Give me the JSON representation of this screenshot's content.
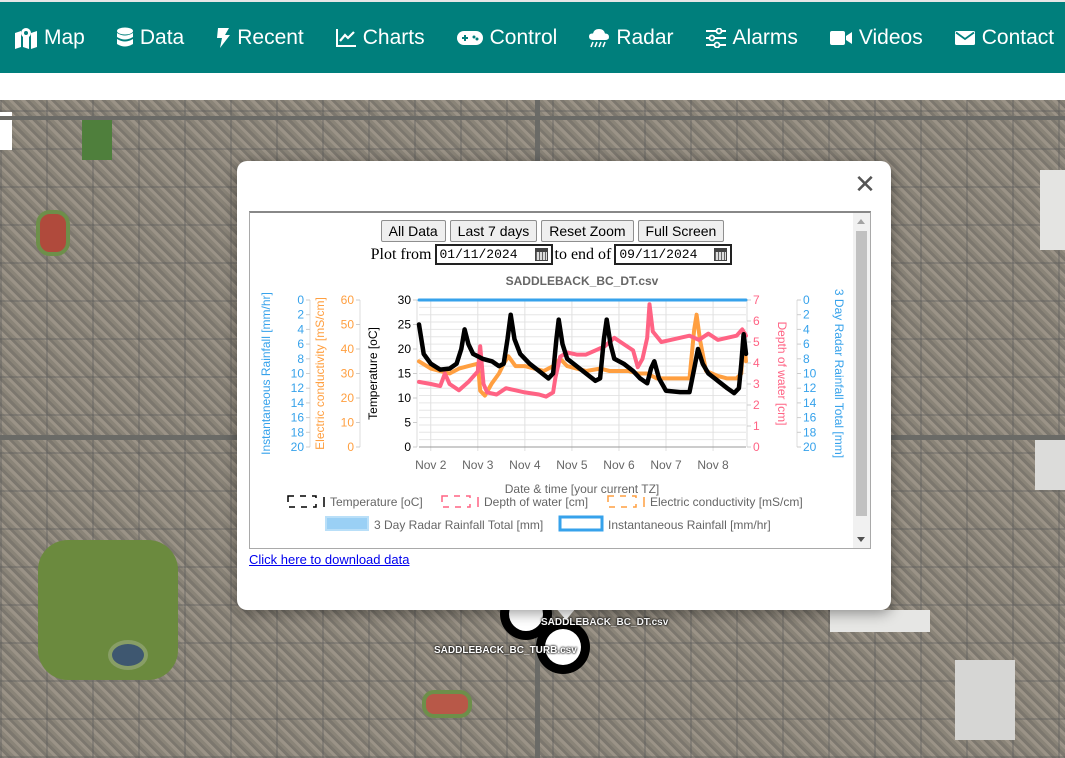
{
  "nav": {
    "items": [
      {
        "label": "Map",
        "icon": "map-icon"
      },
      {
        "label": "Data",
        "icon": "database-icon"
      },
      {
        "label": "Recent",
        "icon": "bolt-icon"
      },
      {
        "label": "Charts",
        "icon": "line-chart-icon"
      },
      {
        "label": "Control",
        "icon": "gamepad-icon"
      },
      {
        "label": "Radar",
        "icon": "cloud-rain-icon"
      },
      {
        "label": "Alarms",
        "icon": "sliders-icon"
      },
      {
        "label": "Videos",
        "icon": "video-icon"
      },
      {
        "label": "Contact",
        "icon": "envelope-icon"
      }
    ],
    "color": "#007f7c"
  },
  "popup": {
    "close_icon": "close-icon",
    "buttons": {
      "all_data": "All Data",
      "last_7_days": "Last 7 days",
      "reset_zoom": "Reset Zoom",
      "full_screen": "Full Screen"
    },
    "date_range": {
      "plot_from_label": "Plot from",
      "from_value": "01/11/2024",
      "to_label": "to end of",
      "to_value": "09/11/2024"
    },
    "download_link": "Click here to download data"
  },
  "map_markers": [
    {
      "label": "SADDLEBACK_BC_DT.csv"
    },
    {
      "label": "SADDLEBACK_BC_TURB.csv"
    }
  ],
  "chart_data": {
    "type": "line",
    "title": "SADDLEBACK_BC_DT.csv",
    "xlabel": "Date & time [your current TZ]",
    "x_ticks": [
      "Nov 2",
      "Nov 3",
      "Nov 4",
      "Nov 5",
      "Nov 6",
      "Nov 7",
      "Nov 8"
    ],
    "x_range_days": [
      1.75,
      8.7
    ],
    "axes": {
      "instantaneous_rainfall": {
        "label": "Instantaneous Rainfall [mm/hr]",
        "ticks": [
          0,
          2,
          4,
          6,
          8,
          10,
          12,
          14,
          16,
          18,
          20
        ],
        "reversed": true,
        "color": "#36a2eb"
      },
      "electric_conductivity": {
        "label": "Electric conductivity [mS/cm]",
        "ticks": [
          60,
          50,
          40,
          30,
          20,
          10,
          0
        ],
        "range": [
          0,
          60
        ],
        "color": "#ff9f40"
      },
      "temperature": {
        "label": "Temperature [oC]",
        "ticks": [
          30,
          25,
          20,
          15,
          10,
          5,
          0
        ],
        "range": [
          0,
          30
        ],
        "color": "#000000"
      },
      "depth_of_water": {
        "label": "Depth of water [cm]",
        "ticks": [
          7,
          6,
          5,
          4,
          3,
          2,
          1,
          0
        ],
        "range": [
          0,
          7
        ],
        "color": "#ff6384"
      },
      "radar_rainfall_3day": {
        "label": "3 Day Radar Rainfall Total [mm]",
        "ticks": [
          0,
          2,
          4,
          6,
          8,
          10,
          12,
          14,
          16,
          18,
          20
        ],
        "reversed": true,
        "color": "#36a2eb"
      }
    },
    "legend": [
      {
        "label": "Temperature [oC]",
        "color": "#000000",
        "style": "dashed"
      },
      {
        "label": "Depth of water [cm]",
        "color": "#ff6384",
        "style": "dashed"
      },
      {
        "label": "Electric conductivity [mS/cm]",
        "color": "#ff9f40",
        "style": "dashed"
      },
      {
        "label": "3 Day Radar Rainfall Total [mm]",
        "color": "#9ad0f5",
        "style": "filled"
      },
      {
        "label": "Instantaneous Rainfall [mm/hr]",
        "color": "#36a2eb",
        "style": "box"
      }
    ],
    "series": [
      {
        "name": "Temperature [oC]",
        "axis": "temperature",
        "color": "#000000",
        "points": [
          [
            1.75,
            25
          ],
          [
            1.85,
            19
          ],
          [
            2.0,
            17
          ],
          [
            2.2,
            15.8
          ],
          [
            2.4,
            16
          ],
          [
            2.55,
            17
          ],
          [
            2.65,
            20
          ],
          [
            2.72,
            24
          ],
          [
            2.8,
            21
          ],
          [
            2.9,
            19
          ],
          [
            3.1,
            18
          ],
          [
            3.3,
            17.5
          ],
          [
            3.45,
            16.5
          ],
          [
            3.55,
            17
          ],
          [
            3.63,
            22
          ],
          [
            3.7,
            27
          ],
          [
            3.78,
            22
          ],
          [
            3.9,
            19
          ],
          [
            4.1,
            17
          ],
          [
            4.3,
            15.5
          ],
          [
            4.5,
            14
          ],
          [
            4.6,
            15
          ],
          [
            4.67,
            22
          ],
          [
            4.72,
            26
          ],
          [
            4.8,
            21
          ],
          [
            4.9,
            18
          ],
          [
            5.1,
            16.5
          ],
          [
            5.3,
            15
          ],
          [
            5.5,
            13.5
          ],
          [
            5.6,
            14
          ],
          [
            5.68,
            22
          ],
          [
            5.74,
            26
          ],
          [
            5.82,
            21
          ],
          [
            5.9,
            18
          ],
          [
            6.1,
            17
          ],
          [
            6.3,
            15.5
          ],
          [
            6.45,
            14
          ],
          [
            6.6,
            13
          ],
          [
            6.68,
            16
          ],
          [
            6.75,
            17.5
          ],
          [
            6.85,
            14
          ],
          [
            7.0,
            11.5
          ],
          [
            7.3,
            11.2
          ],
          [
            7.5,
            11.2
          ],
          [
            7.6,
            16
          ],
          [
            7.68,
            20
          ],
          [
            7.78,
            17
          ],
          [
            7.9,
            15
          ],
          [
            8.1,
            13.5
          ],
          [
            8.3,
            12
          ],
          [
            8.45,
            11
          ],
          [
            8.55,
            12
          ],
          [
            8.6,
            17
          ],
          [
            8.65,
            23
          ],
          [
            8.7,
            19
          ]
        ]
      },
      {
        "name": "Depth of water [cm]",
        "axis": "depth_of_water",
        "color": "#ff6384",
        "points": [
          [
            1.75,
            3.1
          ],
          [
            2.0,
            3.0
          ],
          [
            2.2,
            2.9
          ],
          [
            2.3,
            3.5
          ],
          [
            2.4,
            3.0
          ],
          [
            2.6,
            2.7
          ],
          [
            2.8,
            3.1
          ],
          [
            3.0,
            3.6
          ],
          [
            3.05,
            4.8
          ],
          [
            3.12,
            3.0
          ],
          [
            3.2,
            2.6
          ],
          [
            3.4,
            2.5
          ],
          [
            3.6,
            2.8
          ],
          [
            3.8,
            2.7
          ],
          [
            4.0,
            2.6
          ],
          [
            4.3,
            2.5
          ],
          [
            4.45,
            2.4
          ],
          [
            4.6,
            2.6
          ],
          [
            4.65,
            3.3
          ],
          [
            4.75,
            4.3
          ],
          [
            4.9,
            4.5
          ],
          [
            5.1,
            4.4
          ],
          [
            5.3,
            4.4
          ],
          [
            5.5,
            4.6
          ],
          [
            5.7,
            4.8
          ],
          [
            5.9,
            5.2
          ],
          [
            6.1,
            4.9
          ],
          [
            6.3,
            4.6
          ],
          [
            6.4,
            3.8
          ],
          [
            6.5,
            4.2
          ],
          [
            6.6,
            5.2
          ],
          [
            6.65,
            6.8
          ],
          [
            6.72,
            5.5
          ],
          [
            6.9,
            5.0
          ],
          [
            7.1,
            5.1
          ],
          [
            7.3,
            5.2
          ],
          [
            7.5,
            5.3
          ],
          [
            7.7,
            5.1
          ],
          [
            7.9,
            5.4
          ],
          [
            8.1,
            5.1
          ],
          [
            8.3,
            5.2
          ],
          [
            8.5,
            5.3
          ],
          [
            8.62,
            5.6
          ],
          [
            8.7,
            5.3
          ]
        ]
      },
      {
        "name": "Electric conductivity [mS/cm]",
        "axis": "electric_conductivity",
        "color": "#ff9f40",
        "points": [
          [
            1.75,
            35
          ],
          [
            2.0,
            32
          ],
          [
            2.2,
            31
          ],
          [
            2.4,
            30
          ],
          [
            2.6,
            32
          ],
          [
            2.8,
            33
          ],
          [
            3.0,
            34
          ],
          [
            3.05,
            23
          ],
          [
            3.15,
            21
          ],
          [
            3.3,
            26
          ],
          [
            3.45,
            30
          ],
          [
            3.55,
            34
          ],
          [
            3.65,
            37
          ],
          [
            3.8,
            33
          ],
          [
            4.0,
            33
          ],
          [
            4.2,
            32
          ],
          [
            4.4,
            31
          ],
          [
            4.6,
            33
          ],
          [
            4.75,
            36
          ],
          [
            4.9,
            33
          ],
          [
            5.1,
            32
          ],
          [
            5.3,
            31
          ],
          [
            5.6,
            32
          ],
          [
            5.8,
            31
          ],
          [
            6.0,
            31
          ],
          [
            6.2,
            31
          ],
          [
            6.4,
            30
          ],
          [
            6.6,
            30
          ],
          [
            6.8,
            28
          ],
          [
            7.0,
            28
          ],
          [
            7.3,
            28
          ],
          [
            7.5,
            28
          ],
          [
            7.6,
            48
          ],
          [
            7.65,
            54
          ],
          [
            7.72,
            44
          ],
          [
            7.85,
            31
          ],
          [
            8.1,
            29
          ],
          [
            8.3,
            28
          ],
          [
            8.5,
            28
          ],
          [
            8.6,
            30
          ],
          [
            8.65,
            46
          ],
          [
            8.7,
            35
          ]
        ]
      },
      {
        "name": "Instantaneous Rainfall [mm/hr]",
        "axis": "instantaneous_rainfall",
        "color": "#36a2eb",
        "points": [
          [
            1.75,
            0
          ],
          [
            8.7,
            0
          ]
        ]
      }
    ]
  }
}
